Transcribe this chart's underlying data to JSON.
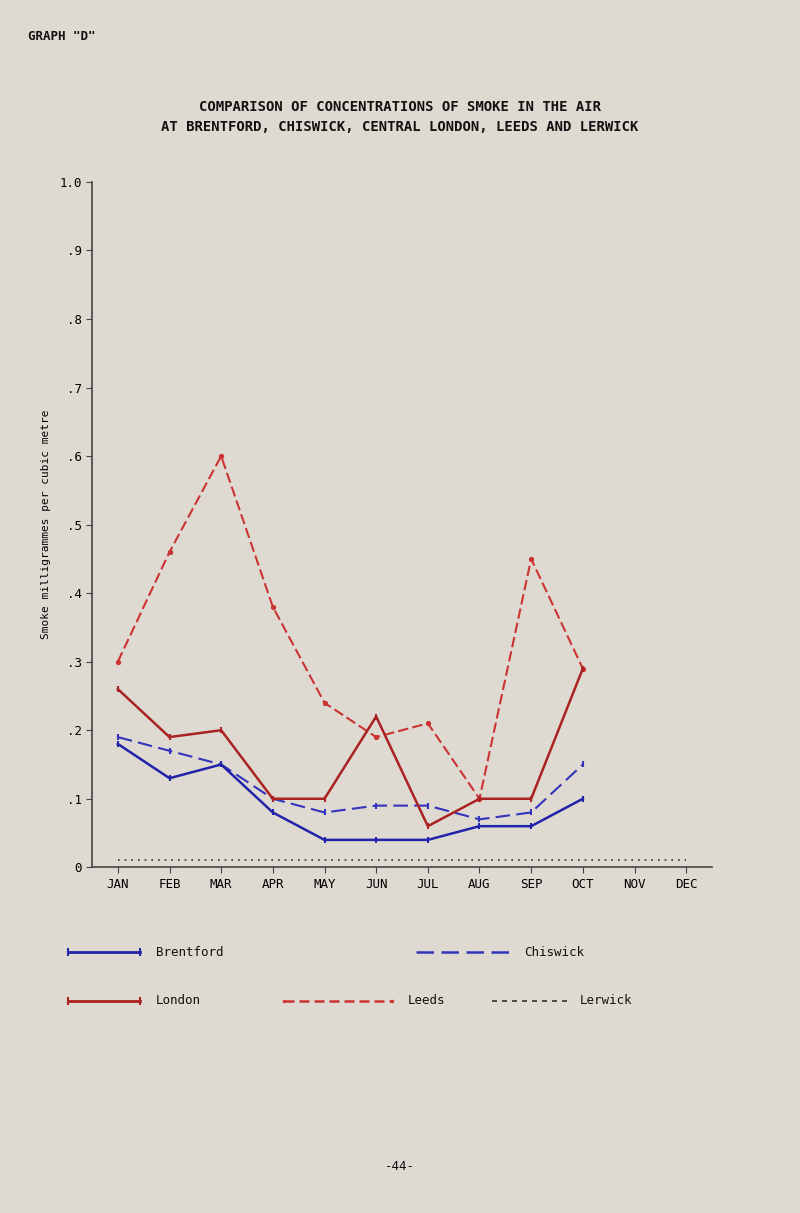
{
  "title_line1": "COMPARISON OF CONCENTRATIONS OF SMOKE IN THE AIR",
  "title_line2": "AT BRENTFORD, CHISWICK, CENTRAL LONDON, LEEDS AND LERWICK",
  "graph_label": "GRAPH \"D\"",
  "ylabel": "Smoke milligrammes per cubic metre",
  "months": [
    "JAN",
    "FEB",
    "MAR",
    "APR",
    "MAY",
    "JUN",
    "JUL",
    "AUG",
    "SEP",
    "OCT",
    "NOV",
    "DEC"
  ],
  "brentford": [
    0.18,
    0.13,
    0.15,
    0.08,
    0.04,
    0.04,
    0.04,
    0.06,
    0.06,
    0.1,
    null,
    null
  ],
  "chiswick": [
    0.19,
    0.17,
    0.15,
    0.1,
    0.08,
    0.09,
    0.09,
    0.07,
    0.08,
    0.15,
    null,
    null
  ],
  "london": [
    0.26,
    0.19,
    0.2,
    0.1,
    0.1,
    0.22,
    0.06,
    0.1,
    0.1,
    0.29,
    null,
    null
  ],
  "leeds": [
    0.3,
    0.46,
    0.6,
    0.38,
    0.24,
    0.19,
    0.21,
    0.1,
    0.45,
    0.29,
    null,
    null
  ],
  "lerwick": [
    0.01,
    0.01,
    0.01,
    0.01,
    0.01,
    0.01,
    0.01,
    0.01,
    0.01,
    0.01,
    0.01,
    0.01
  ],
  "brentford_color": "#2222aa",
  "chiswick_color": "#3333bb",
  "london_color": "#aa2222",
  "leeds_color": "#cc3333",
  "lerwick_color": "#333333",
  "bg_color": "#dedad2",
  "ylim": [
    0,
    1.0
  ],
  "ytick_labels": [
    "0",
    ".1",
    ".2",
    ".3",
    ".4",
    ".5",
    ".6",
    ".7",
    ".8",
    ".9",
    "1.0"
  ],
  "page_number": "-44-"
}
